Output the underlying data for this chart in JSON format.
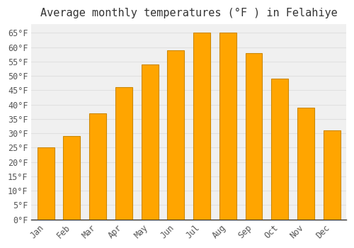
{
  "title": "Average monthly temperatures (°F ) in Felahiye",
  "months": [
    "Jan",
    "Feb",
    "Mar",
    "Apr",
    "May",
    "Jun",
    "Jul",
    "Aug",
    "Sep",
    "Oct",
    "Nov",
    "Dec"
  ],
  "values": [
    25,
    29,
    37,
    46,
    54,
    59,
    65,
    65,
    58,
    49,
    39,
    31
  ],
  "bar_color": "#FFA500",
  "bar_edge_color": "#CC8800",
  "background_color": "#ffffff",
  "plot_bg_color": "#f0f0f0",
  "grid_color": "#e0e0e0",
  "ytick_labels": [
    "0°F",
    "5°F",
    "10°F",
    "15°F",
    "20°F",
    "25°F",
    "30°F",
    "35°F",
    "40°F",
    "45°F",
    "50°F",
    "55°F",
    "60°F",
    "65°F"
  ],
  "ytick_values": [
    0,
    5,
    10,
    15,
    20,
    25,
    30,
    35,
    40,
    45,
    50,
    55,
    60,
    65
  ],
  "ylim": [
    0,
    68
  ],
  "title_fontsize": 11,
  "tick_fontsize": 8.5,
  "tick_color": "#555555",
  "title_color": "#333333",
  "spine_color": "#333333",
  "bar_width": 0.65
}
